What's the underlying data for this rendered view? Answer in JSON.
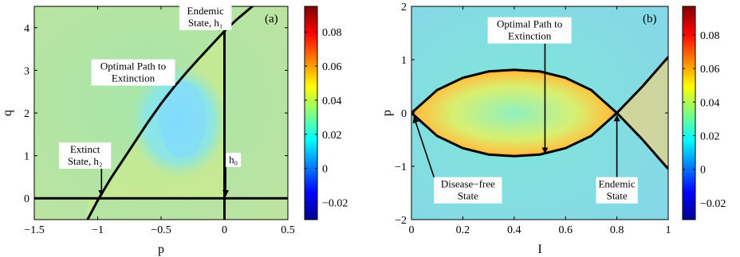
{
  "chart_data": [
    {
      "type": "heatmap",
      "panel_label": "(a)",
      "xlabel": "p",
      "ylabel": "q",
      "xlim": [
        -1.5,
        0.5
      ],
      "ylim": [
        -0.5,
        4.5
      ],
      "xticks": [
        -1.5,
        -1,
        -0.5,
        0,
        0.5
      ],
      "xtick_labels": [
        "−1.5",
        "−1",
        "−0.5",
        "0",
        "0.5"
      ],
      "yticks": [
        0,
        1,
        2,
        3,
        4
      ],
      "ytick_labels": [
        "0",
        "1",
        "2",
        "3",
        "4"
      ],
      "colorbar": {
        "range": [
          -0.03,
          0.095
        ],
        "ticks": [
          -0.02,
          0,
          0.02,
          0.04,
          0.06,
          0.08
        ],
        "tick_labels": [
          "−0.02",
          "0",
          "0.02",
          "0.04",
          "0.06",
          "0.08"
        ]
      },
      "curves": [
        {
          "role": "q = 0",
          "x": [
            -1.5,
            0.5
          ],
          "y": [
            0,
            0
          ]
        },
        {
          "role": "p = 0",
          "x": [
            0,
            0
          ],
          "y": [
            -0.5,
            4.5
          ]
        },
        {
          "role": "optimal path",
          "x": [
            -1.08,
            -1.0,
            -0.9,
            -0.8,
            -0.7,
            -0.6,
            -0.5,
            -0.4,
            -0.3,
            -0.2,
            -0.1,
            0.0,
            0.1,
            0.2,
            0.3
          ],
          "y": [
            -0.5,
            -0.05,
            0.45,
            0.9,
            1.35,
            1.8,
            2.22,
            2.6,
            2.95,
            3.28,
            3.6,
            3.92,
            4.2,
            4.45,
            4.7
          ]
        }
      ],
      "annotations": [
        {
          "lines": [
            "Endemic",
            "State, h₁"
          ],
          "x": -0.15,
          "y": 4.25,
          "arrow_to": [
            0.0,
            4.0
          ]
        },
        {
          "lines": [
            "Optimal Path to",
            "Extinction"
          ],
          "x": -0.72,
          "y": 2.95,
          "arrow_to": [
            -0.55,
            2.85
          ]
        },
        {
          "lines": [
            "Extinct",
            "State, h₂"
          ],
          "x": -1.1,
          "y": 1.0,
          "arrow_to": [
            -0.97,
            0.06
          ]
        },
        {
          "lines": [
            "h₀"
          ],
          "x": 0.07,
          "y": 0.9,
          "arrow_to": [
            0.01,
            0.06
          ]
        }
      ]
    },
    {
      "type": "heatmap",
      "panel_label": "(b)",
      "xlabel": "I",
      "ylabel": "p",
      "xlim": [
        0,
        1
      ],
      "ylim": [
        -2,
        2
      ],
      "xticks": [
        0,
        0.2,
        0.4,
        0.6,
        0.8,
        1
      ],
      "xtick_labels": [
        "0",
        "0.2",
        "0.4",
        "0.6",
        "0.8",
        "1"
      ],
      "yticks": [
        -2,
        -1,
        0,
        1,
        2
      ],
      "ytick_labels": [
        "−2",
        "−1",
        "0",
        "1",
        "2"
      ],
      "colorbar": {
        "range": [
          -0.03,
          0.097
        ],
        "ticks": [
          -0.02,
          0,
          0.02,
          0.04,
          0.06,
          0.08
        ],
        "tick_labels": [
          "−0.02",
          "0",
          "0.02",
          "0.04",
          "0.06",
          "0.08"
        ]
      },
      "curves": [
        {
          "role": "upper branch",
          "x": [
            0,
            0.1,
            0.2,
            0.3,
            0.4,
            0.5,
            0.6,
            0.7,
            0.8,
            0.9,
            1.0
          ],
          "y": [
            0,
            0.43,
            0.66,
            0.78,
            0.81,
            0.78,
            0.66,
            0.43,
            0,
            -0.5,
            -1.05
          ]
        },
        {
          "role": "lower branch",
          "x": [
            0,
            0.1,
            0.2,
            0.3,
            0.4,
            0.5,
            0.6,
            0.7,
            0.8,
            0.9,
            1.0
          ],
          "y": [
            0,
            -0.43,
            -0.66,
            -0.78,
            -0.81,
            -0.78,
            -0.66,
            -0.43,
            0,
            0.5,
            1.05
          ]
        }
      ],
      "annotations": [
        {
          "lines": [
            "Optimal Path to",
            "Extinction"
          ],
          "x": 0.46,
          "y": 1.55,
          "arrow_to": [
            0.52,
            -0.75
          ]
        },
        {
          "lines": [
            "Disease−free",
            "State"
          ],
          "x": 0.22,
          "y": -1.45,
          "arrow_to": [
            0.01,
            -0.08
          ]
        },
        {
          "lines": [
            "Endemic",
            "State"
          ],
          "x": 0.8,
          "y": -1.45,
          "arrow_to": [
            0.8,
            -0.05
          ]
        }
      ]
    }
  ]
}
